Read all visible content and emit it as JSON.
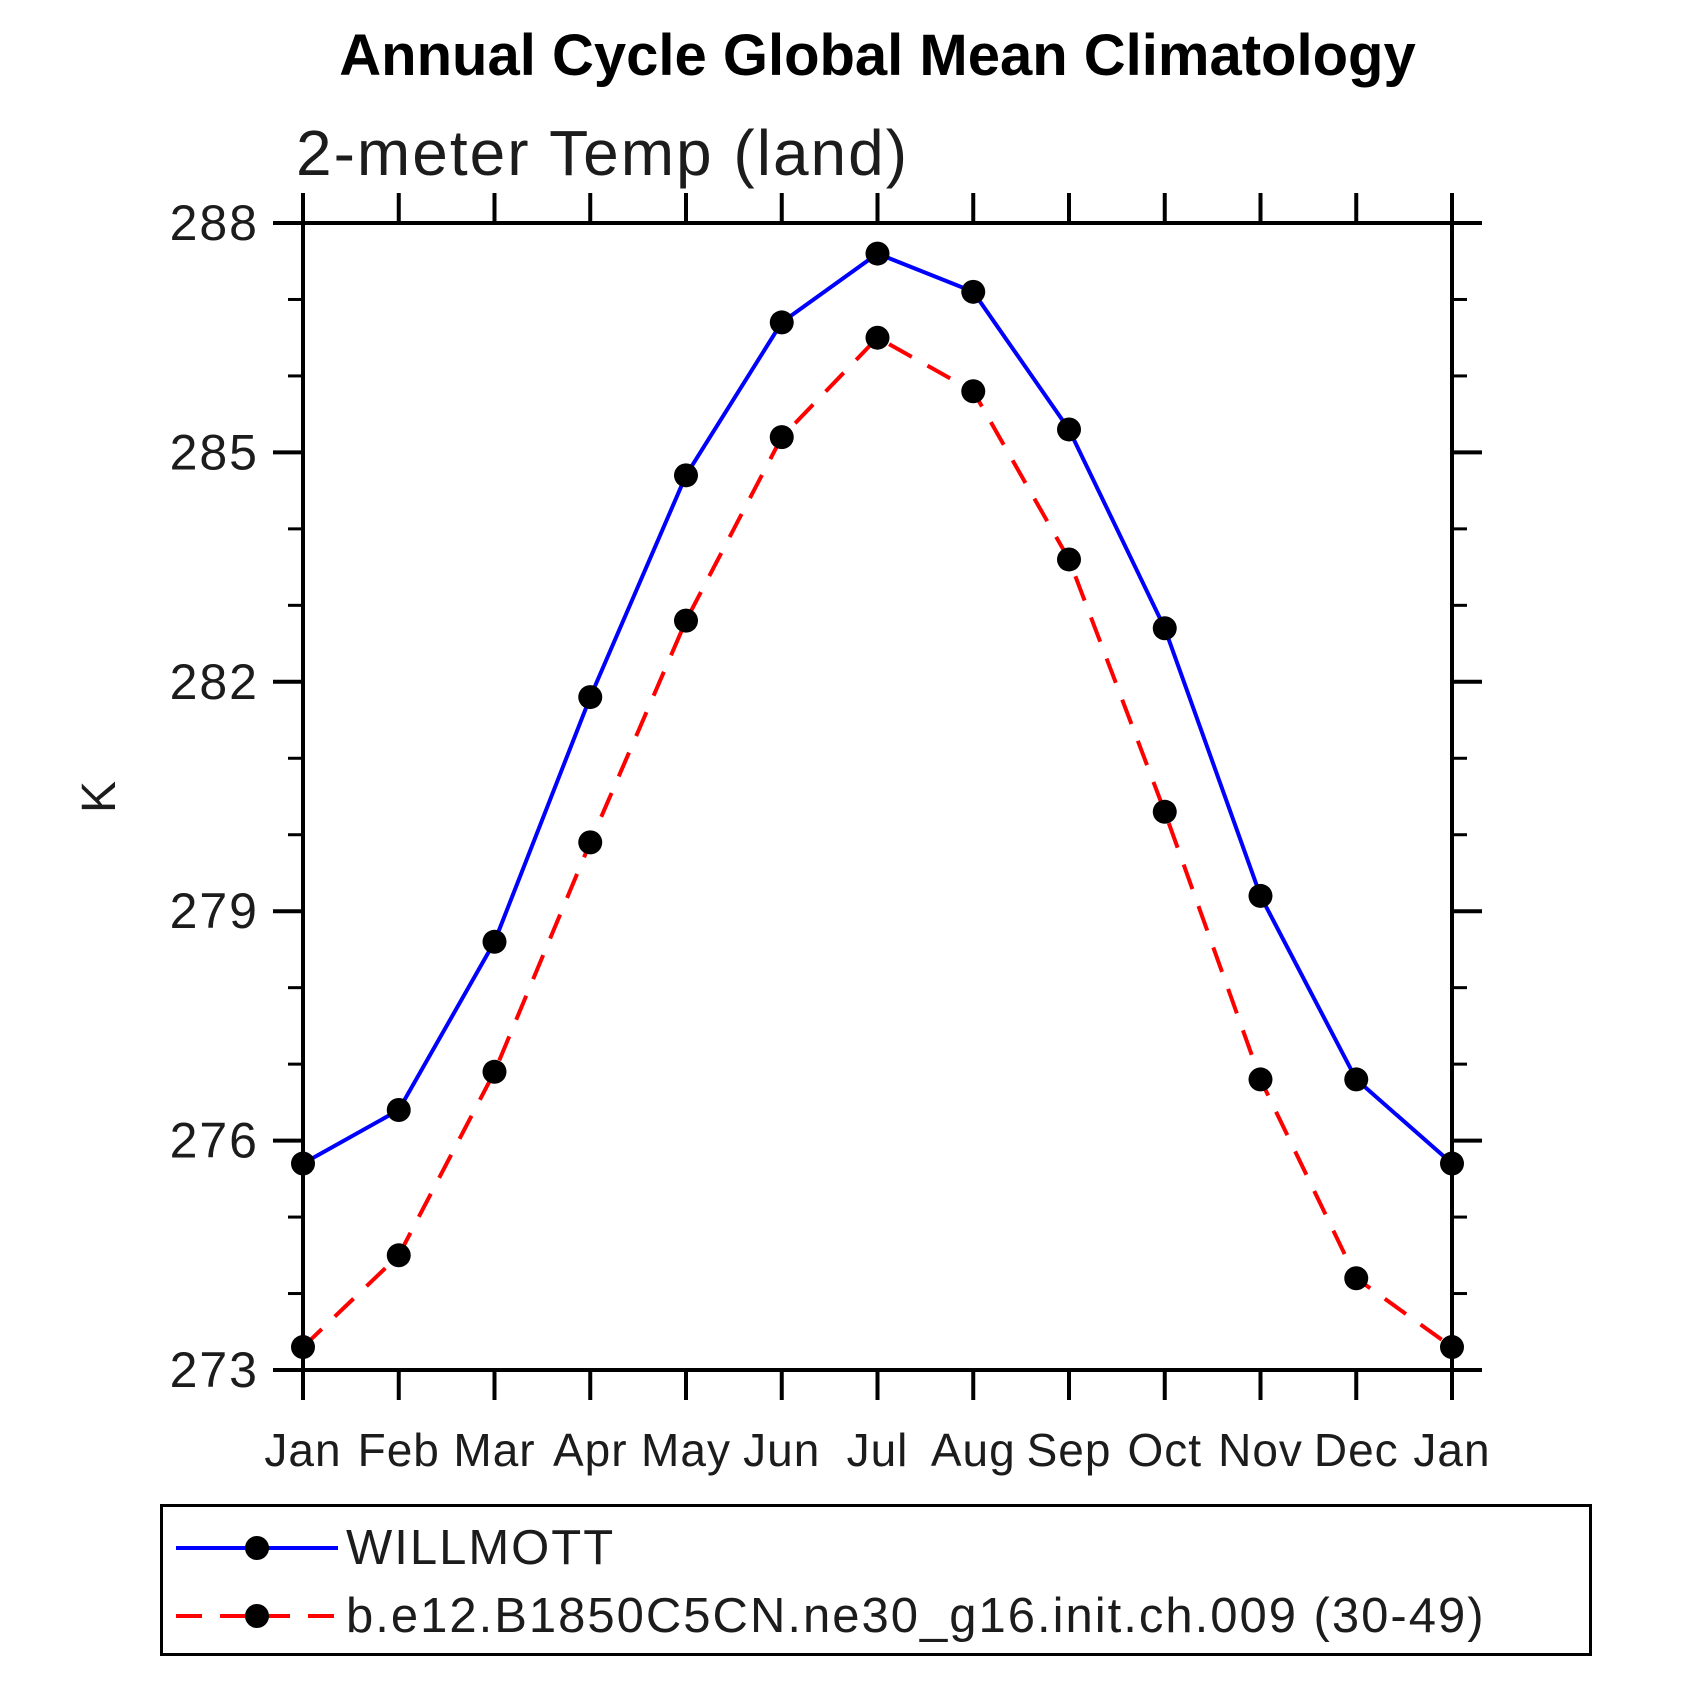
{
  "title": "Annual Cycle Global Mean Climatology",
  "subtitle": "2-meter Temp (land)",
  "ylabel": "K",
  "colors": {
    "obs_line": "#0000ff",
    "model_line": "#ff0000",
    "marker": "#000000",
    "axis": "#000000"
  },
  "chart_data": {
    "type": "line",
    "categories": [
      "Jan",
      "Feb",
      "Mar",
      "Apr",
      "May",
      "Jun",
      "Jul",
      "Aug",
      "Sep",
      "Oct",
      "Nov",
      "Dec",
      "Jan"
    ],
    "series": [
      {
        "name": "WILLMOTT",
        "color": "#0000ff",
        "line_style": "solid",
        "marker": "circle",
        "values": [
          275.7,
          276.4,
          278.6,
          281.8,
          284.7,
          286.7,
          287.6,
          287.1,
          285.3,
          282.7,
          279.2,
          276.8,
          275.7
        ]
      },
      {
        "name": "b.e12.B1850C5CN.ne30_g16.init.ch.009 (30-49)",
        "color": "#ff0000",
        "line_style": "dashed",
        "marker": "circle",
        "values": [
          273.3,
          274.5,
          276.9,
          279.9,
          282.8,
          285.2,
          286.5,
          285.8,
          283.6,
          280.3,
          276.8,
          274.2,
          273.3
        ]
      }
    ],
    "ylim": [
      273,
      288
    ],
    "yticks_major": [
      273,
      276,
      279,
      282,
      285,
      288
    ],
    "ytick_minor_step": 1,
    "grid": false,
    "legend_position": "bottom"
  }
}
